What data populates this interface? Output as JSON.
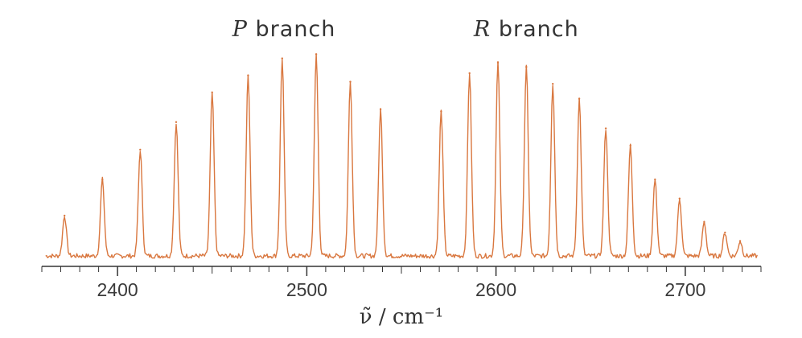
{
  "chart_data": {
    "type": "line",
    "title": "",
    "xlabel": "ν̃ / cm⁻¹",
    "ylabel": "",
    "xlim": [
      2360,
      2740
    ],
    "ylim": [
      0,
      1
    ],
    "x_ticks": [
      2400,
      2500,
      2600,
      2700
    ],
    "tick_labels": [
      "2400",
      "2500",
      "2600",
      "2700"
    ],
    "grid": false,
    "line_color": "#d9773f",
    "annotations": [
      {
        "letter": "P",
        "text": "branch",
        "x": 2488
      },
      {
        "letter": "R",
        "text": "branch",
        "x": 2616
      }
    ],
    "baseline": 0.03,
    "series": [
      {
        "values": [
          {
            "x": 2372,
            "y": 0.22
          },
          {
            "x": 2392,
            "y": 0.39
          },
          {
            "x": 2412,
            "y": 0.53
          },
          {
            "x": 2431,
            "y": 0.66
          },
          {
            "x": 2450,
            "y": 0.8
          },
          {
            "x": 2469,
            "y": 0.88
          },
          {
            "x": 2487,
            "y": 0.96
          },
          {
            "x": 2505,
            "y": 0.98
          },
          {
            "x": 2523,
            "y": 0.85
          },
          {
            "x": 2539,
            "y": 0.72
          },
          {
            "x": 2571,
            "y": 0.71
          },
          {
            "x": 2586,
            "y": 0.89
          },
          {
            "x": 2601,
            "y": 0.94
          },
          {
            "x": 2616,
            "y": 0.92
          },
          {
            "x": 2630,
            "y": 0.84
          },
          {
            "x": 2644,
            "y": 0.77
          },
          {
            "x": 2658,
            "y": 0.63
          },
          {
            "x": 2671,
            "y": 0.55
          },
          {
            "x": 2684,
            "y": 0.39
          },
          {
            "x": 2697,
            "y": 0.3
          },
          {
            "x": 2710,
            "y": 0.19
          },
          {
            "x": 2721,
            "y": 0.14
          },
          {
            "x": 2729,
            "y": 0.1
          }
        ]
      }
    ]
  }
}
